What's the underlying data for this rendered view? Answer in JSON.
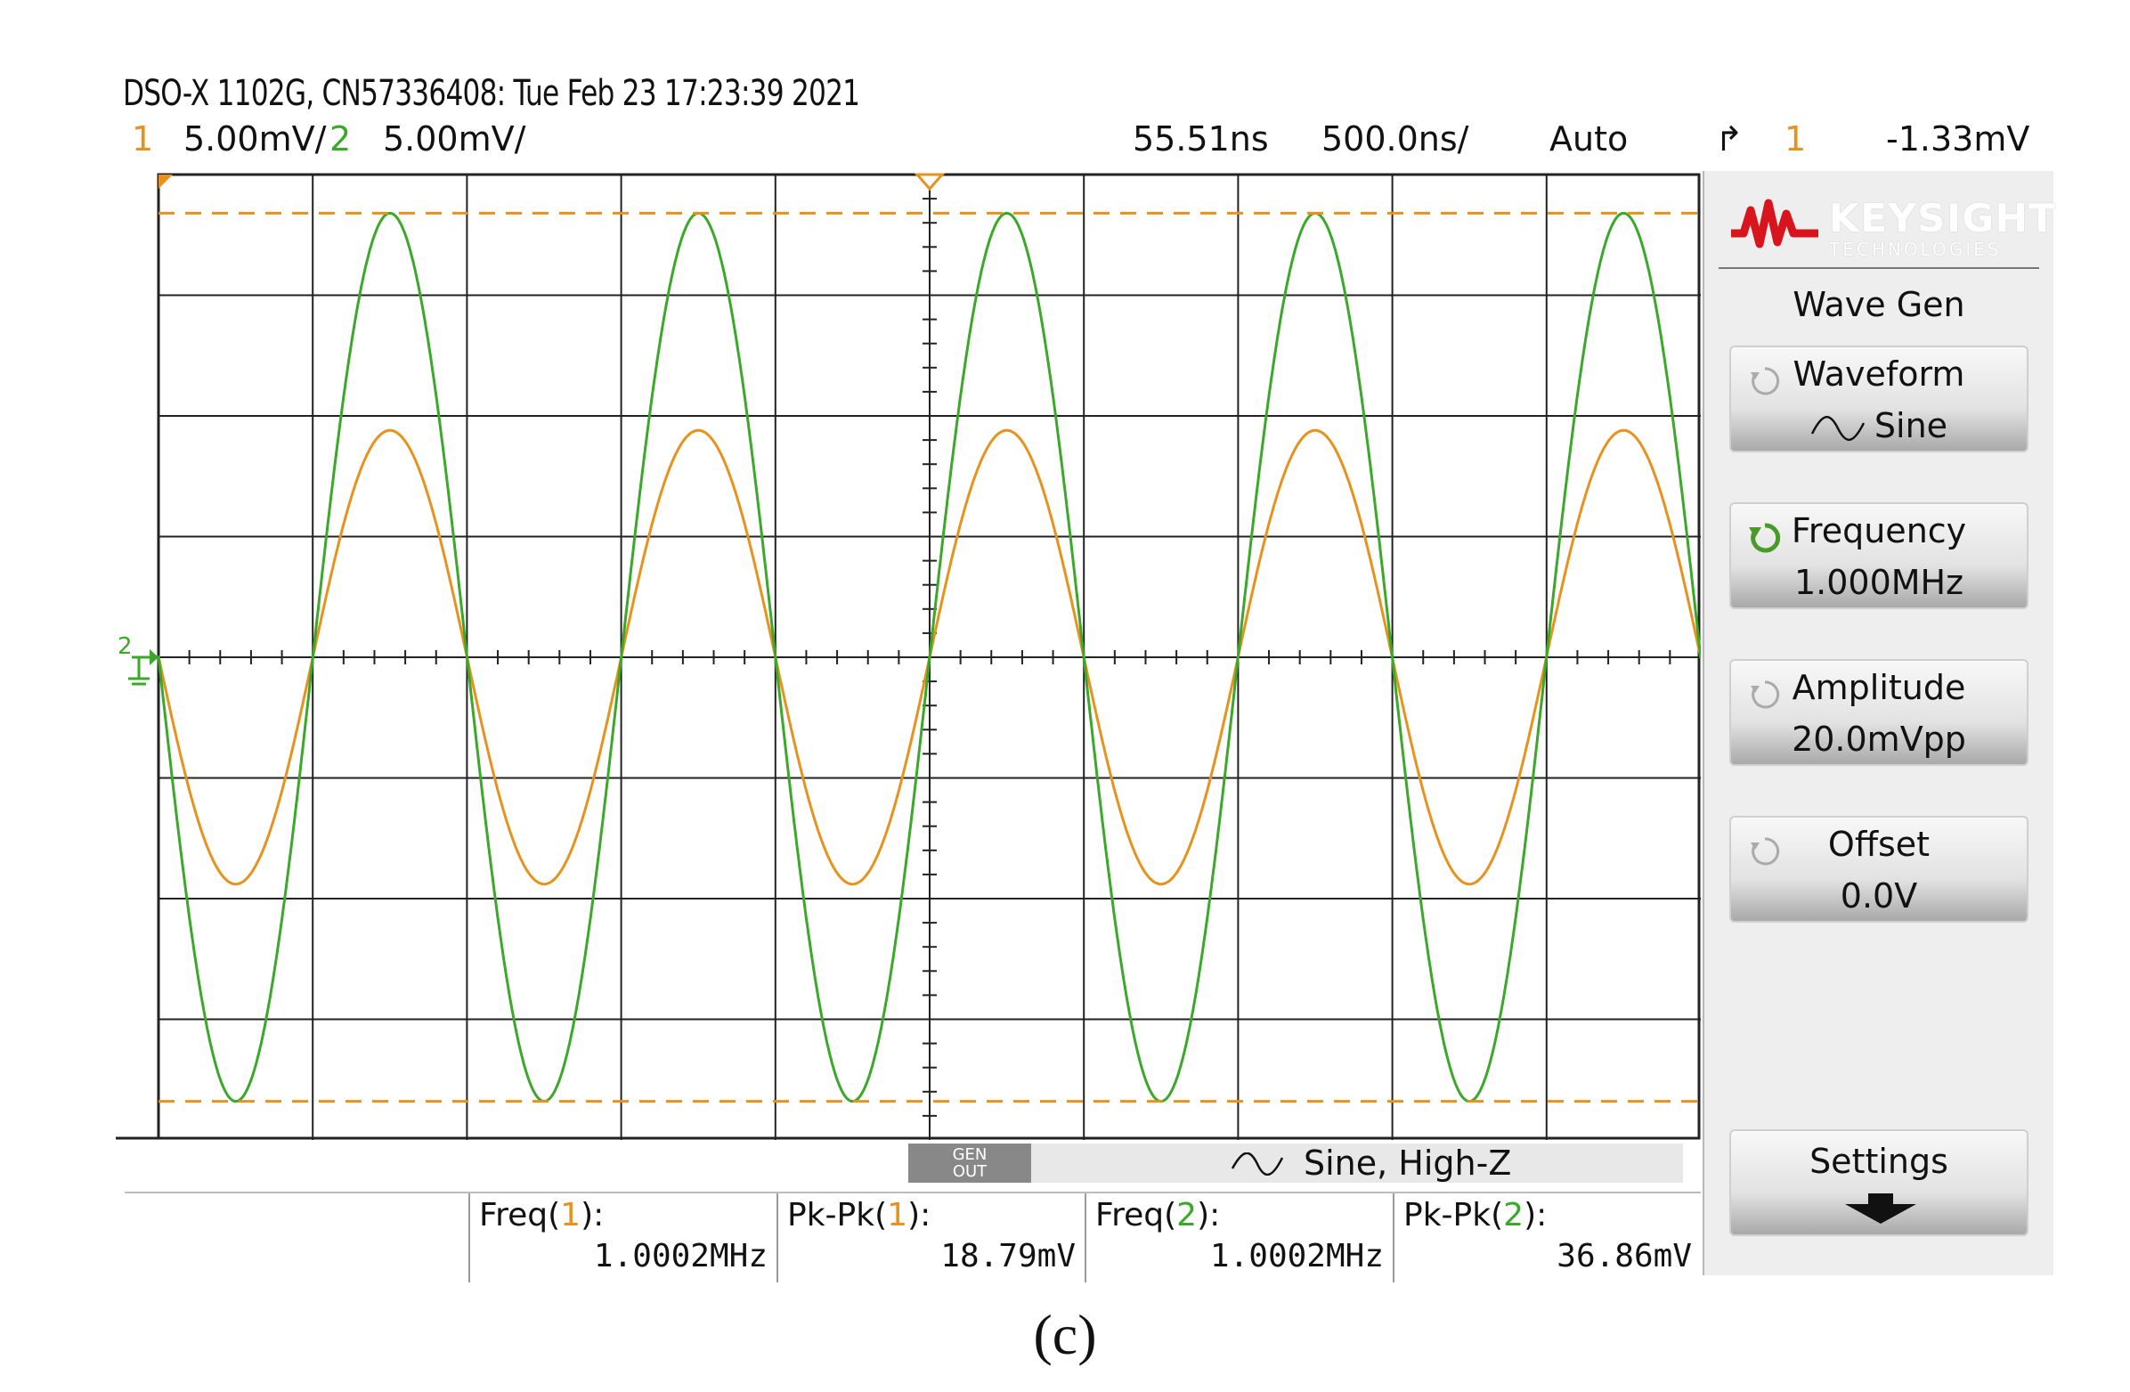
{
  "header": {
    "title": "DSO-X 1102G, CN57336408: Tue Feb 23 17:23:39 2021",
    "ch1_number": "1",
    "ch1_scale": "5.00mV/",
    "ch2_number": "2",
    "ch2_scale": "5.00mV/",
    "time_delay": "55.51ns",
    "time_scale": "500.0ns/",
    "trigger_mode": "Auto",
    "trigger_source": "1",
    "trigger_level": "-1.33mV"
  },
  "colors": {
    "ch1": "#e8921e",
    "ch2": "#3aa829",
    "grid": "#222222",
    "background": "#ffffff"
  },
  "screen": {
    "ground_marker_label": "2",
    "trigger_marker_icon": "triangle-down-icon"
  },
  "chart_data": {
    "type": "line",
    "xlim": [
      -2.5,
      2.5
    ],
    "xunit": "us",
    "ylim": [
      -20,
      20
    ],
    "yunit": "mV",
    "grid": true,
    "grid_divisions": {
      "x": 10,
      "y": 8
    },
    "series": [
      {
        "channel": "1",
        "shape": "sine",
        "frequency_MHz": 1.0002,
        "amplitude_mV": 9.4,
        "offset_mV": 0,
        "phase_deg": 0
      },
      {
        "channel": "2",
        "shape": "sine",
        "frequency_MHz": 1.0002,
        "amplitude_mV": 18.4,
        "offset_mV": 0,
        "phase_deg": 0
      }
    ]
  },
  "panel": {
    "brand_name": "KEYSIGHT",
    "brand_sub": "TECHNOLOGIES",
    "title": "Wave Gen",
    "softkeys": [
      {
        "label": "Waveform",
        "value": "Sine",
        "icon": "rotate-icon"
      },
      {
        "label": "Frequency",
        "value": "1.000MHz",
        "icon": "rotate-active-icon"
      },
      {
        "label": "Amplitude",
        "value": "20.0mVpp",
        "icon": "rotate-icon"
      },
      {
        "label": "Offset",
        "value": "0.0V",
        "icon": "rotate-icon"
      },
      {
        "label": "Settings",
        "value": "",
        "icon": "arrow-down-icon"
      }
    ]
  },
  "genout": {
    "button_line1": "GEN",
    "button_line2": "OUT",
    "status": "Sine, High-Z"
  },
  "measurements": [
    {
      "name_prefix": "Freq(",
      "channel": "1",
      "name_suffix": "):",
      "value": "1.0002MHz"
    },
    {
      "name_prefix": "Pk-Pk(",
      "channel": "1",
      "name_suffix": "):",
      "value": "18.79mV"
    },
    {
      "name_prefix": "Freq(",
      "channel": "2",
      "name_suffix": "):",
      "value": "1.0002MHz"
    },
    {
      "name_prefix": "Pk-Pk(",
      "channel": "2",
      "name_suffix": "):",
      "value": "36.86mV"
    }
  ],
  "caption": "(c)"
}
